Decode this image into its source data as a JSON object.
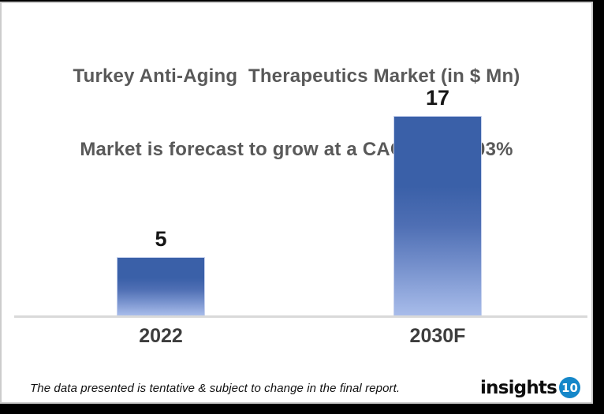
{
  "title": {
    "line1": "Turkey Anti-Aging  Therapeutics Market (in $ Mn)",
    "line2": "Market is forecast to grow at a CAGR of 17.03%"
  },
  "chart_data": {
    "type": "bar",
    "categories": [
      "2022",
      "2030F"
    ],
    "values": [
      5,
      17
    ],
    "data_labels": [
      "5",
      "17"
    ],
    "title": "Turkey Anti-Aging Therapeutics Market (in $ Mn)",
    "subtitle": "Market is forecast to grow at a CAGR of 17.03%",
    "cagr_percent": "17.03%",
    "value_unit": "$ Mn",
    "xlabel": "",
    "ylabel": "",
    "ylim": [
      0,
      17
    ],
    "grid": false,
    "legend": false,
    "colors": {
      "bar_gradient_top": "#3a60a8",
      "bar_gradient_upper_mid": "#4f6fb4",
      "bar_gradient_mid": "#7590cc",
      "bar_gradient_bottom": "#a8bcea",
      "bar_border": "#c7d2ee",
      "axis_line": "#d9d9d9",
      "title_text": "#595959",
      "value_label_text": "#161616",
      "category_label_text": "#3d3d3d"
    }
  },
  "footer": {
    "disclaimer": "The data presented is tentative & subject to change in the final report.",
    "logo": {
      "text": "insights",
      "badge": "10",
      "badge_color": "#1587c9"
    }
  }
}
